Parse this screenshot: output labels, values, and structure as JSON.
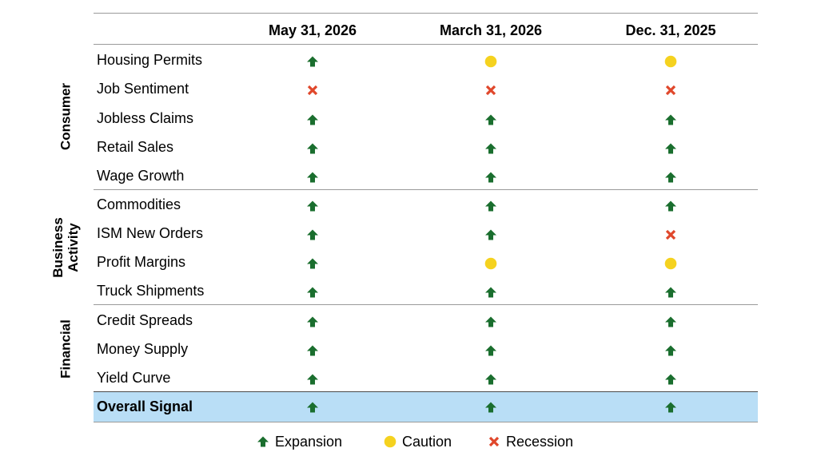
{
  "chart_data": {
    "type": "table",
    "columns": [
      "May 31, 2026",
      "March 31, 2026",
      "Dec. 31, 2025"
    ],
    "groups": [
      {
        "label": "Consumer",
        "rows": [
          {
            "label": "Housing Permits",
            "signals": [
              "expansion",
              "caution",
              "caution"
            ]
          },
          {
            "label": "Job Sentiment",
            "signals": [
              "recession",
              "recession",
              "recession"
            ]
          },
          {
            "label": "Jobless Claims",
            "signals": [
              "expansion",
              "expansion",
              "expansion"
            ]
          },
          {
            "label": "Retail Sales",
            "signals": [
              "expansion",
              "expansion",
              "expansion"
            ]
          },
          {
            "label": "Wage Growth",
            "signals": [
              "expansion",
              "expansion",
              "expansion"
            ]
          }
        ]
      },
      {
        "label": "Business Activity",
        "label_lines": [
          "Business",
          "Activity"
        ],
        "rows": [
          {
            "label": "Commodities",
            "signals": [
              "expansion",
              "expansion",
              "expansion"
            ]
          },
          {
            "label": "ISM New Orders",
            "signals": [
              "expansion",
              "expansion",
              "recession"
            ]
          },
          {
            "label": "Profit Margins",
            "signals": [
              "expansion",
              "caution",
              "caution"
            ]
          },
          {
            "label": "Truck Shipments",
            "signals": [
              "expansion",
              "expansion",
              "expansion"
            ]
          }
        ]
      },
      {
        "label": "Financial",
        "rows": [
          {
            "label": "Credit Spreads",
            "signals": [
              "expansion",
              "expansion",
              "expansion"
            ]
          },
          {
            "label": "Money Supply",
            "signals": [
              "expansion",
              "expansion",
              "expansion"
            ]
          },
          {
            "label": "Yield Curve",
            "signals": [
              "expansion",
              "expansion",
              "expansion"
            ]
          }
        ]
      }
    ],
    "overall": {
      "label": "Overall Signal",
      "signals": [
        "expansion",
        "expansion",
        "expansion"
      ]
    },
    "legend": [
      {
        "key": "expansion",
        "label": "Expansion",
        "icon": "up-arrow-icon",
        "color": "#1a6e2e"
      },
      {
        "key": "caution",
        "label": "Caution",
        "icon": "circle-icon",
        "color": "#f5d21f"
      },
      {
        "key": "recession",
        "label": "Recession",
        "icon": "x-icon",
        "color": "#e0472b"
      }
    ],
    "highlight_color": "#b9def6"
  }
}
